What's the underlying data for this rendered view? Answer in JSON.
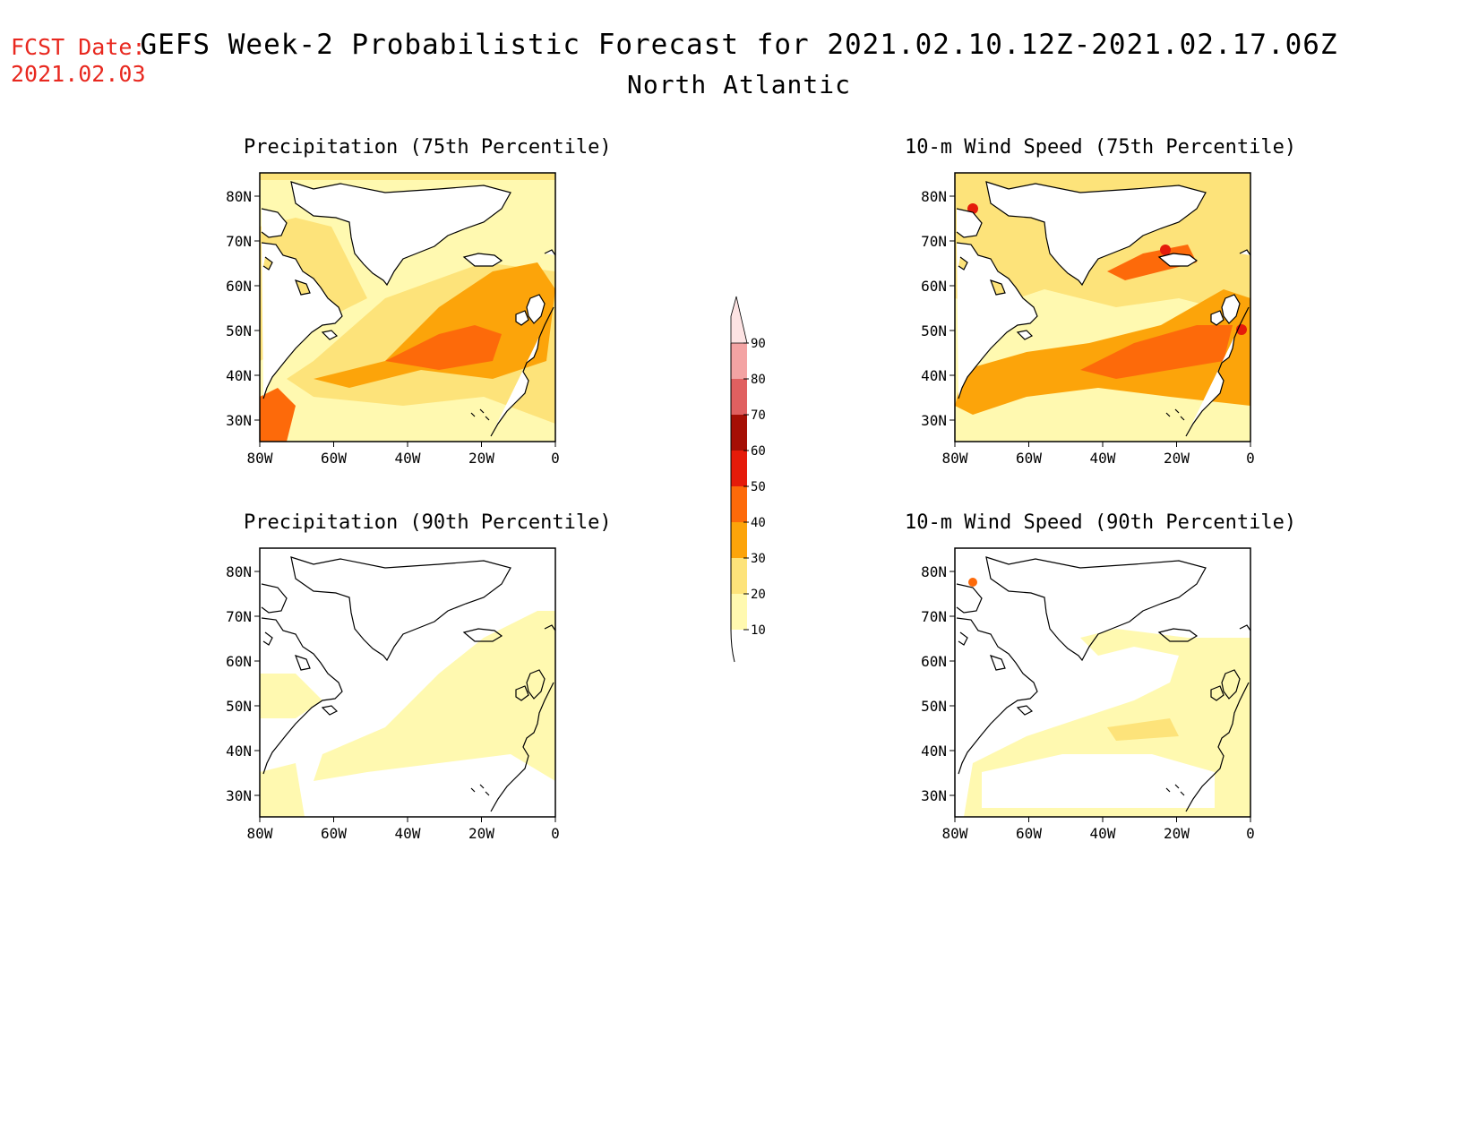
{
  "header": {
    "fcst_label": "FCST Date:",
    "fcst_date": "2021.02.03",
    "title": "GEFS Week-2 Probabilistic Forecast for 2021.02.10.12Z-2021.02.17.06Z",
    "region": "North Atlantic"
  },
  "panels": [
    {
      "id": "precip75",
      "title": "Precipitation (75th Percentile)"
    },
    {
      "id": "wind75",
      "title": "10-m Wind Speed (75th Percentile)"
    },
    {
      "id": "precip90",
      "title": "Precipitation (90th Percentile)"
    },
    {
      "id": "wind90",
      "title": "10-m Wind Speed (90th Percentile)"
    }
  ],
  "axes": {
    "lon_ticks": [
      "80W",
      "60W",
      "40W",
      "20W",
      "0"
    ],
    "lat_ticks": [
      "80N",
      "70N",
      "60N",
      "50N",
      "40N",
      "30N"
    ]
  },
  "colorbar": {
    "levels": [
      "10",
      "20",
      "30",
      "40",
      "50",
      "60",
      "70",
      "80",
      "90"
    ],
    "colors": [
      "#fff9b0",
      "#fde37a",
      "#fca40a",
      "#fd6a0a",
      "#e51b0a",
      "#a50f05",
      "#e06060",
      "#f3a3a3",
      "#fde3e3"
    ]
  },
  "colors": {
    "fcst_text": "#e8281f",
    "land_outline": "#000000"
  }
}
